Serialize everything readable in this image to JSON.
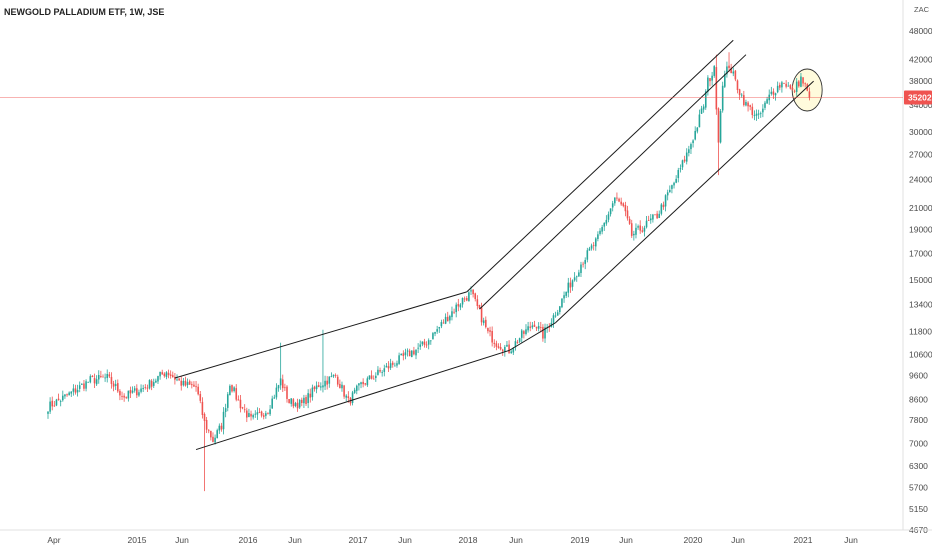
{
  "chart_data": {
    "type": "candlestick",
    "title": "NEWGOLD PALLADIUM ETF, 1W, JSE",
    "currency": "ZAC",
    "scale": "log",
    "ylim": [
      4670,
      52000
    ],
    "y_ticks": [
      "4670",
      "5150",
      "5700",
      "6300",
      "7000",
      "7800",
      "8600",
      "9600",
      "10600",
      "11800",
      "13400",
      "15000",
      "17000",
      "19000",
      "21000",
      "24000",
      "27000",
      "30000",
      "34000",
      "38000",
      "42000",
      "48000"
    ],
    "x_ticks": [
      "Apr",
      "2015",
      "Jun",
      "2016",
      "Jun",
      "2017",
      "Jun",
      "2018",
      "Jun",
      "2019",
      "Jun",
      "2020",
      "Jun",
      "2021",
      "Jun"
    ],
    "last_price": "35202",
    "up_color": "#26a69a",
    "down_color": "#ef5350",
    "price_anchors": [
      [
        0,
        8300
      ],
      [
        10,
        8800
      ],
      [
        20,
        9400
      ],
      [
        28,
        9500
      ],
      [
        36,
        8700
      ],
      [
        46,
        9100
      ],
      [
        56,
        9800
      ],
      [
        64,
        9200
      ],
      [
        70,
        9100
      ],
      [
        74,
        7700
      ],
      [
        78,
        7100
      ],
      [
        82,
        7600
      ],
      [
        86,
        9300
      ],
      [
        90,
        8500
      ],
      [
        96,
        7800
      ],
      [
        104,
        8200
      ],
      [
        110,
        9400
      ],
      [
        114,
        8500
      ],
      [
        120,
        8400
      ],
      [
        128,
        9200
      ],
      [
        136,
        9600
      ],
      [
        142,
        8500
      ],
      [
        148,
        9200
      ],
      [
        156,
        9700
      ],
      [
        164,
        10200
      ],
      [
        170,
        10600
      ],
      [
        178,
        11100
      ],
      [
        184,
        11900
      ],
      [
        190,
        12800
      ],
      [
        196,
        13700
      ],
      [
        200,
        14100
      ],
      [
        204,
        12900
      ],
      [
        208,
        11700
      ],
      [
        212,
        11200
      ],
      [
        218,
        10800
      ],
      [
        224,
        11600
      ],
      [
        230,
        12300
      ],
      [
        234,
        11600
      ],
      [
        240,
        12900
      ],
      [
        246,
        14500
      ],
      [
        252,
        16200
      ],
      [
        260,
        18200
      ],
      [
        268,
        22000
      ],
      [
        272,
        21000
      ],
      [
        276,
        18500
      ],
      [
        282,
        19300
      ],
      [
        288,
        20300
      ],
      [
        296,
        23600
      ],
      [
        302,
        27000
      ],
      [
        306,
        30000
      ],
      [
        310,
        34000
      ],
      [
        312,
        38000
      ],
      [
        315,
        40000
      ],
      [
        317,
        29000
      ],
      [
        319,
        38000
      ],
      [
        322,
        41000
      ],
      [
        326,
        37000
      ],
      [
        330,
        34000
      ],
      [
        336,
        32000
      ],
      [
        342,
        36000
      ],
      [
        348,
        38000
      ],
      [
        352,
        36000
      ],
      [
        356,
        38500
      ],
      [
        358,
        37000
      ],
      [
        360,
        35202
      ]
    ],
    "trend_lines": [
      {
        "name": "channel-1-upper",
        "p1": [
          60,
          9500
        ],
        "p2": [
          198,
          14200
        ]
      },
      {
        "name": "channel-1-lower",
        "p1": [
          70,
          6800
        ],
        "p2": [
          218,
          10800
        ]
      },
      {
        "name": "channel-2-upper",
        "p1": [
          198,
          14200
        ],
        "p2": [
          324,
          46000
        ]
      },
      {
        "name": "channel-2-mid",
        "p1": [
          204,
          13100
        ],
        "p2": [
          330,
          43000
        ]
      },
      {
        "name": "channel-2-lower",
        "p1": [
          218,
          10800
        ],
        "p2": [
          240,
          12300
        ]
      },
      {
        "name": "channel-2-lower-b",
        "p1": [
          240,
          12300
        ],
        "p2": [
          362,
          38000
        ]
      }
    ],
    "annotations": [
      {
        "type": "ellipse",
        "at": [
          358,
          37500
        ],
        "fill": "#fff9c4",
        "stroke": "#333333"
      }
    ]
  }
}
